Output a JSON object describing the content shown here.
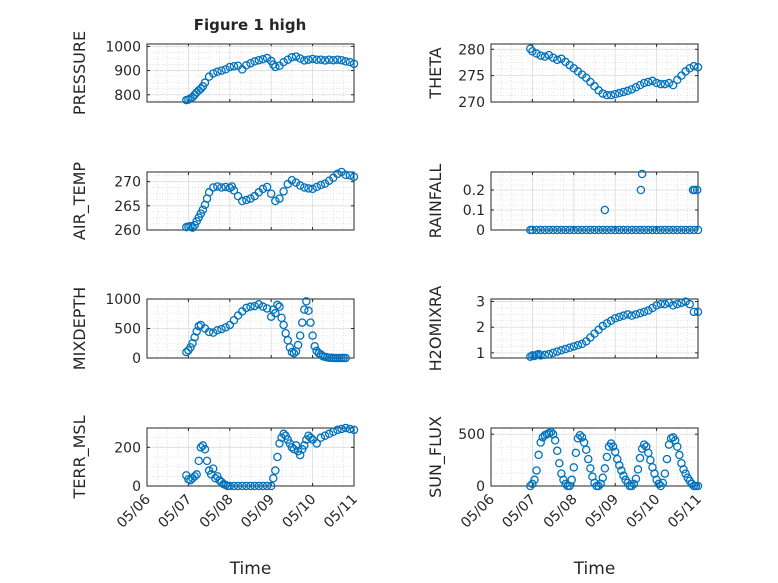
{
  "title": "Figure 1 high",
  "chart_data": [
    {
      "type": "scatter",
      "id": "pressure",
      "ylabel": "PRESSURE",
      "ylim": [
        770,
        1010
      ],
      "yticks": [
        "800",
        "900",
        "1000"
      ],
      "ytick_values": [
        800,
        900,
        1000
      ],
      "x": [
        6.95,
        7.0,
        7.05,
        7.1,
        7.15,
        7.2,
        7.25,
        7.3,
        7.35,
        7.4,
        7.5,
        7.6,
        7.7,
        7.8,
        7.9,
        8.0,
        8.1,
        8.2,
        8.3,
        8.4,
        8.5,
        8.6,
        8.7,
        8.8,
        8.9,
        9.0,
        9.05,
        9.1,
        9.2,
        9.3,
        9.4,
        9.5,
        9.6,
        9.7,
        9.8,
        9.9,
        10.0,
        10.1,
        10.2,
        10.3,
        10.4,
        10.5,
        10.6,
        10.7,
        10.8,
        10.9,
        11.0
      ],
      "y": [
        778,
        780,
        785,
        790,
        800,
        810,
        818,
        825,
        835,
        850,
        875,
        888,
        895,
        900,
        905,
        915,
        918,
        920,
        905,
        922,
        930,
        938,
        943,
        947,
        952,
        940,
        925,
        915,
        920,
        935,
        945,
        955,
        958,
        950,
        942,
        945,
        948,
        945,
        945,
        942,
        945,
        943,
        945,
        943,
        938,
        935,
        928
      ]
    },
    {
      "type": "scatter",
      "id": "theta",
      "ylabel": "THETA",
      "ylim": [
        270,
        281
      ],
      "yticks": [
        "270",
        "275",
        "280"
      ],
      "ytick_values": [
        270,
        275,
        280
      ],
      "x": [
        6.95,
        7.0,
        7.1,
        7.2,
        7.3,
        7.4,
        7.5,
        7.6,
        7.7,
        7.8,
        7.9,
        8.0,
        8.1,
        8.2,
        8.3,
        8.4,
        8.5,
        8.6,
        8.7,
        8.8,
        8.9,
        9.0,
        9.1,
        9.2,
        9.3,
        9.4,
        9.5,
        9.6,
        9.7,
        9.8,
        9.9,
        10.0,
        10.1,
        10.2,
        10.3,
        10.4,
        10.5,
        10.6,
        10.7,
        10.8,
        10.9,
        11.0
      ],
      "y": [
        280.1,
        279.6,
        279.2,
        278.8,
        278.6,
        278.9,
        278.4,
        278.0,
        278.2,
        277.6,
        277.0,
        276.4,
        275.8,
        275.2,
        274.6,
        273.8,
        273.0,
        272.2,
        271.6,
        271.3,
        271.3,
        271.5,
        271.7,
        271.9,
        272.1,
        272.4,
        272.8,
        273.2,
        273.6,
        273.8,
        274.0,
        273.6,
        273.4,
        273.4,
        273.6,
        273.2,
        274.2,
        275.0,
        275.8,
        276.4,
        276.8,
        276.6
      ]
    },
    {
      "type": "scatter",
      "id": "air_temp",
      "ylabel": "AIR_TEMP",
      "ylim": [
        260,
        272
      ],
      "yticks": [
        "260",
        "265",
        "270"
      ],
      "ytick_values": [
        260,
        265,
        270
      ],
      "x": [
        6.95,
        7.0,
        7.05,
        7.1,
        7.15,
        7.2,
        7.25,
        7.3,
        7.35,
        7.4,
        7.45,
        7.5,
        7.6,
        7.7,
        7.8,
        7.9,
        8.0,
        8.05,
        8.1,
        8.2,
        8.3,
        8.4,
        8.5,
        8.6,
        8.7,
        8.8,
        8.9,
        9.0,
        9.1,
        9.2,
        9.3,
        9.4,
        9.5,
        9.6,
        9.7,
        9.8,
        9.9,
        10.0,
        10.1,
        10.2,
        10.3,
        10.4,
        10.5,
        10.6,
        10.7,
        10.8,
        10.9,
        11.0
      ],
      "y": [
        260.6,
        260.7,
        260.8,
        260.5,
        261.0,
        261.8,
        262.6,
        263.4,
        264.2,
        265.2,
        266.5,
        267.8,
        268.8,
        269.0,
        268.8,
        268.9,
        268.7,
        269.0,
        268.2,
        267.0,
        266.0,
        266.2,
        266.5,
        267.0,
        267.8,
        268.5,
        268.9,
        267.5,
        266.0,
        266.5,
        268.0,
        269.5,
        270.3,
        269.8,
        269.2,
        268.8,
        268.6,
        268.5,
        268.9,
        269.3,
        269.6,
        270.2,
        270.8,
        271.6,
        272.0,
        271.4,
        271.3,
        271.0
      ]
    },
    {
      "type": "scatter",
      "id": "rainfall",
      "ylabel": "RAINFALL",
      "ylim": [
        0,
        0.29
      ],
      "yticks": [
        "0",
        "0.1",
        "0.2"
      ],
      "ytick_values": [
        0,
        0.1,
        0.2
      ],
      "x": [
        6.95,
        7.0,
        7.1,
        7.2,
        7.3,
        7.4,
        7.5,
        7.6,
        7.7,
        7.8,
        7.9,
        8.0,
        8.1,
        8.2,
        8.3,
        8.4,
        8.5,
        8.6,
        8.7,
        8.8,
        8.9,
        9.0,
        9.1,
        9.2,
        9.3,
        9.4,
        9.5,
        9.6,
        9.7,
        9.8,
        9.9,
        10.0,
        10.1,
        10.2,
        10.3,
        10.4,
        10.5,
        10.6,
        10.7,
        10.8,
        10.9,
        11.0,
        8.75,
        9.62,
        9.65,
        10.88,
        10.92,
        10.98
      ],
      "y": [
        0,
        0,
        0,
        0,
        0,
        0,
        0,
        0,
        0,
        0,
        0,
        0,
        0,
        0,
        0,
        0,
        0,
        0,
        0,
        0,
        0,
        0,
        0,
        0,
        0,
        0,
        0,
        0,
        0,
        0,
        0,
        0,
        0,
        0,
        0,
        0,
        0,
        0,
        0,
        0,
        0,
        0,
        0.1,
        0.2,
        0.28,
        0.2,
        0.2,
        0.2
      ]
    },
    {
      "type": "scatter",
      "id": "mixdepth",
      "ylabel": "MIXDEPTH",
      "ylim": [
        0,
        1000
      ],
      "yticks": [
        "0",
        "500",
        "1000"
      ],
      "ytick_values": [
        0,
        500,
        1000
      ],
      "x": [
        6.95,
        7.0,
        7.05,
        7.1,
        7.15,
        7.2,
        7.25,
        7.3,
        7.4,
        7.5,
        7.6,
        7.7,
        7.8,
        7.9,
        8.0,
        8.1,
        8.2,
        8.3,
        8.4,
        8.5,
        8.6,
        8.7,
        8.8,
        8.9,
        9.0,
        9.05,
        9.1,
        9.15,
        9.2,
        9.25,
        9.3,
        9.35,
        9.4,
        9.45,
        9.5,
        9.55,
        9.6,
        9.65,
        9.7,
        9.75,
        9.8,
        9.85,
        9.9,
        9.95,
        10.0,
        10.05,
        10.1,
        10.15,
        10.2,
        10.25,
        10.3,
        10.35,
        10.4,
        10.45,
        10.5,
        10.55,
        10.6,
        10.65,
        10.7,
        10.75,
        10.8
      ],
      "y": [
        100,
        130,
        180,
        250,
        350,
        450,
        540,
        560,
        500,
        440,
        430,
        470,
        490,
        520,
        560,
        640,
        720,
        790,
        850,
        870,
        880,
        910,
        870,
        840,
        700,
        820,
        760,
        900,
        870,
        680,
        560,
        420,
        300,
        180,
        100,
        80,
        110,
        220,
        380,
        600,
        820,
        960,
        800,
        600,
        380,
        200,
        120,
        80,
        60,
        30,
        20,
        10,
        5,
        5,
        0,
        0,
        0,
        0,
        0,
        0,
        0
      ]
    },
    {
      "type": "scatter",
      "id": "h2omixra",
      "ylabel": "H2OMIXRA",
      "ylim": [
        0.8,
        3.1
      ],
      "yticks": [
        "1",
        "2",
        "3"
      ],
      "ytick_values": [
        1,
        2,
        3
      ],
      "x": [
        6.95,
        7.0,
        7.05,
        7.1,
        7.15,
        7.2,
        7.3,
        7.4,
        7.5,
        7.6,
        7.7,
        7.8,
        7.9,
        8.0,
        8.1,
        8.2,
        8.3,
        8.4,
        8.5,
        8.6,
        8.7,
        8.8,
        8.9,
        9.0,
        9.1,
        9.2,
        9.3,
        9.4,
        9.5,
        9.6,
        9.7,
        9.8,
        9.9,
        10.0,
        10.1,
        10.2,
        10.3,
        10.4,
        10.5,
        10.6,
        10.7,
        10.8,
        10.9,
        11.0
      ],
      "y": [
        0.85,
        0.9,
        0.88,
        0.92,
        0.95,
        0.9,
        0.92,
        0.95,
        1.0,
        1.05,
        1.1,
        1.15,
        1.2,
        1.25,
        1.3,
        1.35,
        1.45,
        1.6,
        1.75,
        1.9,
        2.05,
        2.15,
        2.25,
        2.35,
        2.4,
        2.45,
        2.5,
        2.45,
        2.5,
        2.55,
        2.6,
        2.65,
        2.75,
        2.85,
        2.9,
        2.9,
        2.95,
        2.85,
        2.9,
        2.95,
        3.0,
        2.9,
        2.6,
        2.6
      ]
    },
    {
      "type": "scatter",
      "id": "terr_msl",
      "ylabel": "TERR_MSL",
      "ylim": [
        0,
        300
      ],
      "yticks": [
        "0",
        "200"
      ],
      "ytick_values": [
        0,
        200
      ],
      "x": [
        6.95,
        7.0,
        7.05,
        7.1,
        7.15,
        7.2,
        7.25,
        7.3,
        7.35,
        7.4,
        7.45,
        7.5,
        7.55,
        7.6,
        7.65,
        7.7,
        7.75,
        7.8,
        7.85,
        7.9,
        7.95,
        8.0,
        8.1,
        8.2,
        8.3,
        8.4,
        8.5,
        8.6,
        8.7,
        8.8,
        8.9,
        9.0,
        9.05,
        9.1,
        9.15,
        9.2,
        9.25,
        9.3,
        9.35,
        9.4,
        9.45,
        9.5,
        9.55,
        9.6,
        9.65,
        9.7,
        9.75,
        9.8,
        9.85,
        9.9,
        9.95,
        10.0,
        10.1,
        10.2,
        10.3,
        10.4,
        10.5,
        10.6,
        10.7,
        10.8,
        10.9,
        11.0
      ],
      "y": [
        55,
        35,
        30,
        40,
        50,
        60,
        130,
        200,
        210,
        190,
        130,
        80,
        60,
        90,
        40,
        50,
        30,
        20,
        10,
        5,
        0,
        0,
        0,
        0,
        0,
        0,
        0,
        0,
        0,
        0,
        0,
        0,
        40,
        80,
        150,
        220,
        250,
        270,
        260,
        240,
        220,
        200,
        190,
        210,
        180,
        160,
        190,
        210,
        240,
        260,
        250,
        240,
        220,
        250,
        260,
        270,
        280,
        290,
        295,
        300,
        295,
        290
      ]
    },
    {
      "type": "scatter",
      "id": "sun_flux",
      "ylabel": "SUN_FLUX",
      "ylim": [
        0,
        560
      ],
      "yticks": [
        "0",
        "500"
      ],
      "ytick_values": [
        0,
        500
      ],
      "x": [
        6.95,
        7.0,
        7.05,
        7.1,
        7.15,
        7.2,
        7.25,
        7.3,
        7.35,
        7.4,
        7.45,
        7.5,
        7.55,
        7.6,
        7.65,
        7.7,
        7.75,
        7.8,
        7.85,
        7.9,
        7.95,
        8.0,
        8.05,
        8.1,
        8.15,
        8.2,
        8.25,
        8.3,
        8.35,
        8.4,
        8.45,
        8.5,
        8.55,
        8.6,
        8.65,
        8.7,
        8.75,
        8.8,
        8.85,
        8.9,
        8.95,
        9.0,
        9.05,
        9.1,
        9.15,
        9.2,
        9.25,
        9.3,
        9.35,
        9.4,
        9.45,
        9.5,
        9.55,
        9.6,
        9.65,
        9.7,
        9.75,
        9.8,
        9.85,
        9.9,
        9.95,
        10.0,
        10.05,
        10.1,
        10.15,
        10.2,
        10.25,
        10.3,
        10.35,
        10.4,
        10.45,
        10.5,
        10.55,
        10.6,
        10.65,
        10.7,
        10.75,
        10.8,
        10.85,
        10.9,
        10.95,
        11.0
      ],
      "y": [
        0,
        20,
        60,
        150,
        300,
        420,
        470,
        490,
        500,
        510,
        520,
        500,
        440,
        340,
        220,
        120,
        60,
        20,
        0,
        0,
        60,
        180,
        320,
        460,
        490,
        470,
        420,
        350,
        260,
        170,
        90,
        30,
        0,
        0,
        20,
        80,
        170,
        280,
        380,
        410,
        380,
        330,
        260,
        200,
        150,
        100,
        60,
        30,
        0,
        0,
        20,
        70,
        160,
        270,
        360,
        400,
        380,
        320,
        250,
        180,
        120,
        60,
        20,
        0,
        30,
        120,
        260,
        400,
        460,
        470,
        440,
        380,
        300,
        220,
        160,
        120,
        80,
        50,
        20,
        0,
        0,
        0
      ]
    }
  ],
  "shared_x": {
    "label": "Time",
    "xlim": [
      6,
      11
    ],
    "tick_values": [
      6,
      7,
      8,
      9,
      10,
      11
    ],
    "tick_labels": [
      "05/06",
      "05/07",
      "05/08",
      "05/09",
      "05/10",
      "05/11"
    ]
  },
  "colors": {
    "marker": "#0072BD",
    "axis": "#262626",
    "grid": "#dcdcdc"
  }
}
